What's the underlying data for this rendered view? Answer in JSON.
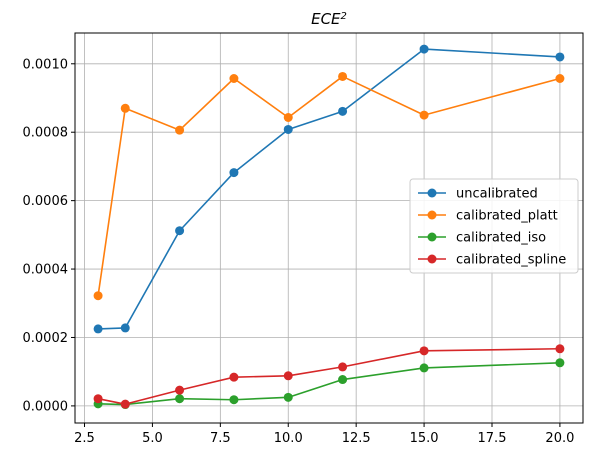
{
  "chart_data": {
    "type": "line",
    "title": "ECE",
    "title_superscript": "2",
    "xlabel": "",
    "ylabel": "",
    "x": [
      3,
      4,
      6,
      8,
      10,
      12,
      15,
      20
    ],
    "xlim": [
      2.15,
      20.85
    ],
    "ylim": [
      -5e-05,
      0.00109
    ],
    "xticks": [
      2.5,
      5.0,
      7.5,
      10.0,
      12.5,
      15.0,
      17.5,
      20.0
    ],
    "xtick_labels": [
      "2.5",
      "5.0",
      "7.5",
      "10.0",
      "12.5",
      "15.0",
      "17.5",
      "20.0"
    ],
    "yticks": [
      0.0,
      0.0002,
      0.0004,
      0.0006,
      0.0008,
      0.001
    ],
    "ytick_labels": [
      "0.0000",
      "0.0002",
      "0.0004",
      "0.0006",
      "0.0008",
      "0.0010"
    ],
    "grid": true,
    "legend_position": "center-right",
    "series": [
      {
        "name": "uncalibrated",
        "color": "#1f77b4",
        "values": [
          0.000225,
          0.000228,
          0.000512,
          0.000682,
          0.000808,
          0.000861,
          0.001043,
          0.00102
        ]
      },
      {
        "name": "calibrated_platt",
        "color": "#ff7f0e",
        "values": [
          0.000322,
          0.00087,
          0.000806,
          0.000957,
          0.000843,
          0.000963,
          0.00085,
          0.000957
        ]
      },
      {
        "name": "calibrated_iso",
        "color": "#2ca02c",
        "values": [
          6e-06,
          4e-06,
          2.1e-05,
          1.8e-05,
          2.5e-05,
          7.7e-05,
          0.000111,
          0.000126
        ]
      },
      {
        "name": "calibrated_spline",
        "color": "#d62728",
        "values": [
          2.1e-05,
          5e-06,
          4.6e-05,
          8.4e-05,
          8.8e-05,
          0.000114,
          0.000161,
          0.000167
        ]
      }
    ]
  }
}
